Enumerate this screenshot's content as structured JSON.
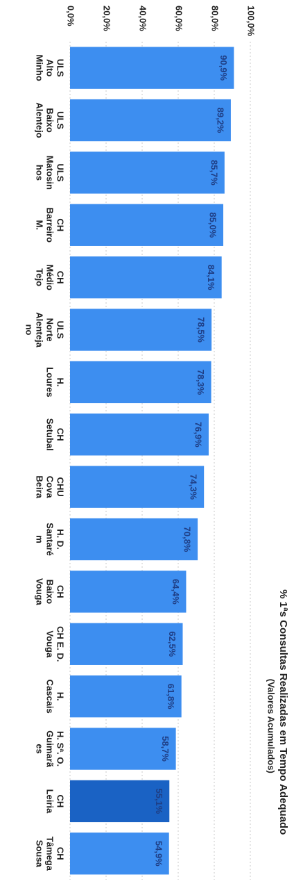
{
  "chart_data": {
    "type": "bar",
    "title": "% 1ªs Consultas Realizadas em Tempo Adequado",
    "subtitle": "(Valores Acumulados)",
    "categories": [
      [
        "ULS",
        "Alto",
        "Minho"
      ],
      [
        "ULS",
        "Baixo",
        "Alentejo"
      ],
      [
        "ULS",
        "Matosin",
        "hos"
      ],
      [
        "CH",
        "Barreiro",
        "M."
      ],
      [
        "CH",
        "Médio",
        "Tejo"
      ],
      [
        "ULS",
        "Norte",
        "Alenteja",
        "no"
      ],
      [
        "H.",
        "Loures"
      ],
      [
        "CH",
        "Setubal"
      ],
      [
        "CHU",
        "Cova",
        "Beira"
      ],
      [
        "H. D.",
        "Santaré",
        "m"
      ],
      [
        "CH",
        "Baixo",
        "Vouga"
      ],
      [
        "CH E. D.",
        "Vouga"
      ],
      [
        "H.",
        "Cascais"
      ],
      [
        "H. Sª. O.",
        "Guimarã",
        "es"
      ],
      [
        "CH",
        "Leiria"
      ],
      [
        "CH",
        "Tâmega",
        "Sousa"
      ]
    ],
    "values": [
      90.9,
      89.2,
      85.7,
      85.0,
      84.1,
      78.5,
      78.3,
      76.9,
      74.3,
      70.8,
      64.4,
      62.5,
      61.8,
      58.7,
      55.1,
      54.9
    ],
    "value_labels": [
      "90,9%",
      "89,2%",
      "85,7%",
      "85,0%",
      "84,1%",
      "78,5%",
      "78,3%",
      "76,9%",
      "74,3%",
      "70,8%",
      "64,4%",
      "62,5%",
      "61,8%",
      "58,7%",
      "55,1%",
      "54,9%"
    ],
    "highlight_index": 14,
    "ylim": [
      0,
      100
    ],
    "yticks": [
      0,
      20,
      40,
      60,
      80,
      100
    ],
    "ytick_labels": [
      "0,0%",
      "20,0%",
      "40,0%",
      "60,0%",
      "80,0%",
      "100,0%"
    ],
    "grid": true,
    "orientation": "rotated-90-clockwise",
    "colors": {
      "bar": "#3d8ef0",
      "bar_highlight": "#1a62c4",
      "label": "#1f3f86",
      "grid": "#c8c8c8",
      "text": "#222222"
    }
  }
}
